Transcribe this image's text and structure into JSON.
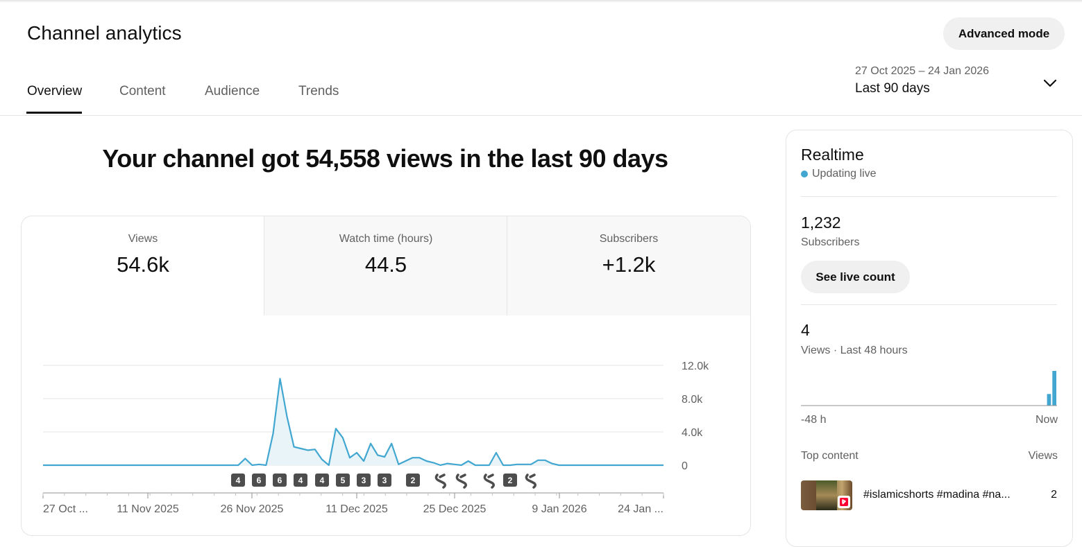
{
  "header": {
    "title": "Channel analytics",
    "advanced_mode": "Advanced mode"
  },
  "tabs": [
    {
      "label": "Overview",
      "active": true
    },
    {
      "label": "Content",
      "active": false
    },
    {
      "label": "Audience",
      "active": false
    },
    {
      "label": "Trends",
      "active": false
    }
  ],
  "date_picker": {
    "range": "27 Oct 2025 – 24 Jan 2026",
    "period": "Last 90 days",
    "icon": "chevron-down-icon"
  },
  "headline": "Your channel got 54,558 views in the last 90 days",
  "metrics": [
    {
      "label": "Views",
      "value": "54.6k",
      "selected": true
    },
    {
      "label": "Watch time (hours)",
      "value": "44.5",
      "selected": false
    },
    {
      "label": "Subscribers",
      "value": "+1.2k",
      "selected": false
    }
  ],
  "chart_data": {
    "type": "area",
    "series": [
      {
        "name": "Views",
        "color": "#41a6d0",
        "values": [
          0,
          0,
          0,
          0,
          0,
          0,
          0,
          0,
          0,
          0,
          0,
          0,
          0,
          0,
          0,
          0,
          0,
          0,
          0,
          0,
          0,
          0,
          0,
          0,
          0,
          0,
          0,
          0,
          0,
          800,
          0,
          100,
          0,
          3800,
          10400,
          5800,
          2200,
          2000,
          1800,
          1900,
          700,
          0,
          4400,
          3300,
          900,
          1500,
          500,
          2600,
          1200,
          1000,
          2600,
          100,
          500,
          900,
          900,
          500,
          300,
          0,
          200,
          100,
          0,
          500,
          0,
          0,
          0,
          1500,
          0,
          0,
          100,
          100,
          100,
          600,
          600,
          200,
          0,
          0,
          0,
          0,
          0,
          0,
          0,
          0,
          0,
          0,
          0,
          0,
          0,
          0,
          0,
          0
        ]
      }
    ],
    "x_tick_labels": [
      "27 Oct ...",
      "11 Nov 2025",
      "26 Nov 2025",
      "11 Dec 2025",
      "25 Dec 2025",
      "9 Jan 2026",
      "24 Jan ..."
    ],
    "y_tick_labels": [
      "12.0k",
      "8.0k",
      "4.0k",
      "0"
    ],
    "ylim": [
      0,
      12000
    ],
    "grid": true,
    "upload_markers": [
      {
        "label": "4"
      },
      {
        "label": "6"
      },
      {
        "label": "6"
      },
      {
        "label": "4"
      },
      {
        "label": "4"
      },
      {
        "label": "5"
      },
      {
        "label": "3"
      },
      {
        "label": "3"
      },
      {
        "label": "2"
      },
      {
        "label": "",
        "icon": "shorts-icon"
      },
      {
        "label": "",
        "icon": "shorts-icon"
      },
      {
        "label": "",
        "icon": "shorts-icon"
      },
      {
        "label": "2"
      },
      {
        "label": "",
        "icon": "shorts-icon"
      }
    ]
  },
  "realtime": {
    "title": "Realtime",
    "status": "Updating live",
    "subscribers_value": "1,232",
    "subscribers_label": "Subscribers",
    "see_live_count": "See live count",
    "views_value": "4",
    "views_label": "Views · Last 48 hours",
    "hourly_views": [
      0,
      0,
      0,
      0,
      0,
      0,
      0,
      0,
      0,
      0,
      0,
      0,
      0,
      0,
      0,
      0,
      0,
      0,
      0,
      0,
      0,
      0,
      0,
      0,
      0,
      0,
      0,
      0,
      0,
      0,
      0,
      0,
      0,
      0,
      0,
      0,
      0,
      0,
      0,
      0,
      0,
      0,
      0,
      0,
      0,
      0,
      1,
      3
    ],
    "axis_start": "-48 h",
    "axis_end": "Now",
    "top_content_label": "Top content",
    "top_content_views_label": "Views",
    "top_content": [
      {
        "title": "#islamicshorts #madina #na...",
        "views": "2"
      }
    ]
  }
}
